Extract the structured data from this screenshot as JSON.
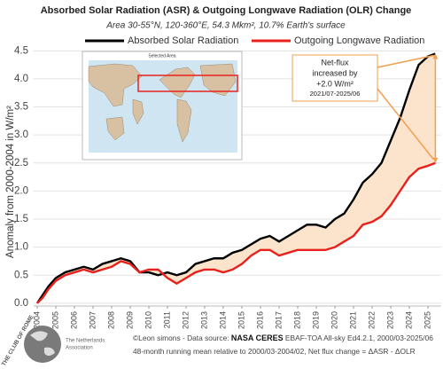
{
  "chart_data": {
    "type": "line",
    "title": "Absorbed Solar Radiation (ASR) & Outgoing Longwave Radiation (OLR) Change",
    "subtitle": "Area 30-55°N, 120-360°E, 54.3 Mkm², 10.7% Earth's surface",
    "y_label": "Anomaly from 2000-2004 in W/m²",
    "x": [
      2004.0,
      2004.3,
      2004.6,
      2005.0,
      2005.5,
      2006.0,
      2006.5,
      2007.0,
      2007.5,
      2008.0,
      2008.5,
      2009.0,
      2009.5,
      2010.0,
      2010.5,
      2011.0,
      2011.5,
      2012.0,
      2012.5,
      2013.0,
      2013.5,
      2014.0,
      2014.5,
      2015.0,
      2015.5,
      2016.0,
      2016.5,
      2017.0,
      2017.5,
      2018.0,
      2018.5,
      2019.0,
      2019.5,
      2020.0,
      2020.5,
      2021.0,
      2021.5,
      2022.0,
      2022.5,
      2023.0,
      2023.5,
      2024.0,
      2024.5,
      2025.0,
      2025.4
    ],
    "series": [
      {
        "name": "Absorbed Solar Radiation",
        "color": "#000000",
        "values": [
          0.0,
          0.15,
          0.3,
          0.45,
          0.55,
          0.6,
          0.65,
          0.6,
          0.7,
          0.75,
          0.8,
          0.75,
          0.55,
          0.55,
          0.5,
          0.55,
          0.5,
          0.55,
          0.7,
          0.75,
          0.8,
          0.8,
          0.9,
          0.95,
          1.05,
          1.15,
          1.2,
          1.1,
          1.2,
          1.3,
          1.4,
          1.4,
          1.35,
          1.5,
          1.6,
          1.85,
          2.15,
          2.3,
          2.5,
          2.9,
          3.3,
          3.8,
          4.25,
          4.4,
          4.45
        ]
      },
      {
        "name": "Outgoing Longwave Radiation",
        "color": "#e8211c",
        "values": [
          0.0,
          0.1,
          0.25,
          0.4,
          0.5,
          0.55,
          0.6,
          0.55,
          0.6,
          0.65,
          0.75,
          0.7,
          0.55,
          0.6,
          0.6,
          0.45,
          0.35,
          0.45,
          0.55,
          0.6,
          0.6,
          0.55,
          0.6,
          0.7,
          0.85,
          0.95,
          0.95,
          0.85,
          0.9,
          0.95,
          0.95,
          0.95,
          0.95,
          1.0,
          1.1,
          1.2,
          1.4,
          1.45,
          1.55,
          1.75,
          2.0,
          2.25,
          2.4,
          2.45,
          2.5
        ]
      }
    ],
    "fill_color": "#fbe3cc",
    "xlim": [
      2003.8,
      2025.7
    ],
    "xticks": [
      2004,
      2005,
      2006,
      2007,
      2008,
      2009,
      2010,
      2011,
      2012,
      2013,
      2014,
      2015,
      2016,
      2017,
      2018,
      2019,
      2020,
      2021,
      2022,
      2023,
      2024,
      2025
    ],
    "ylim": [
      -0.05,
      4.6
    ],
    "yticks": [
      {
        "value": 0,
        "label": "0.0"
      },
      0.5,
      {
        "value": 1,
        "label": "1.0"
      },
      1.5,
      {
        "value": 2,
        "label": "2.0"
      },
      2.5,
      {
        "value": 3,
        "label": "3.0"
      },
      3.5,
      {
        "value": 4,
        "label": "4.0"
      },
      4.5
    ],
    "grid": true,
    "annotation": [
      "Net-flux",
      "increased by",
      "+2.0 W/m²",
      "2021/07-2025/06"
    ],
    "inset_title": "Selected Area",
    "footer": [
      "©Leon simons - Data source: ",
      "NASA CERES",
      " EBAF-TOA All-sky Ed4.2.1, 2000/03-2025/06",
      "48-month running mean relative to 2000/03-2004/02, Net flux change = ΔASR - ΔOLR"
    ],
    "logo": [
      "THE CLUB OF ROME",
      "The Netherlands",
      "Association"
    ]
  }
}
